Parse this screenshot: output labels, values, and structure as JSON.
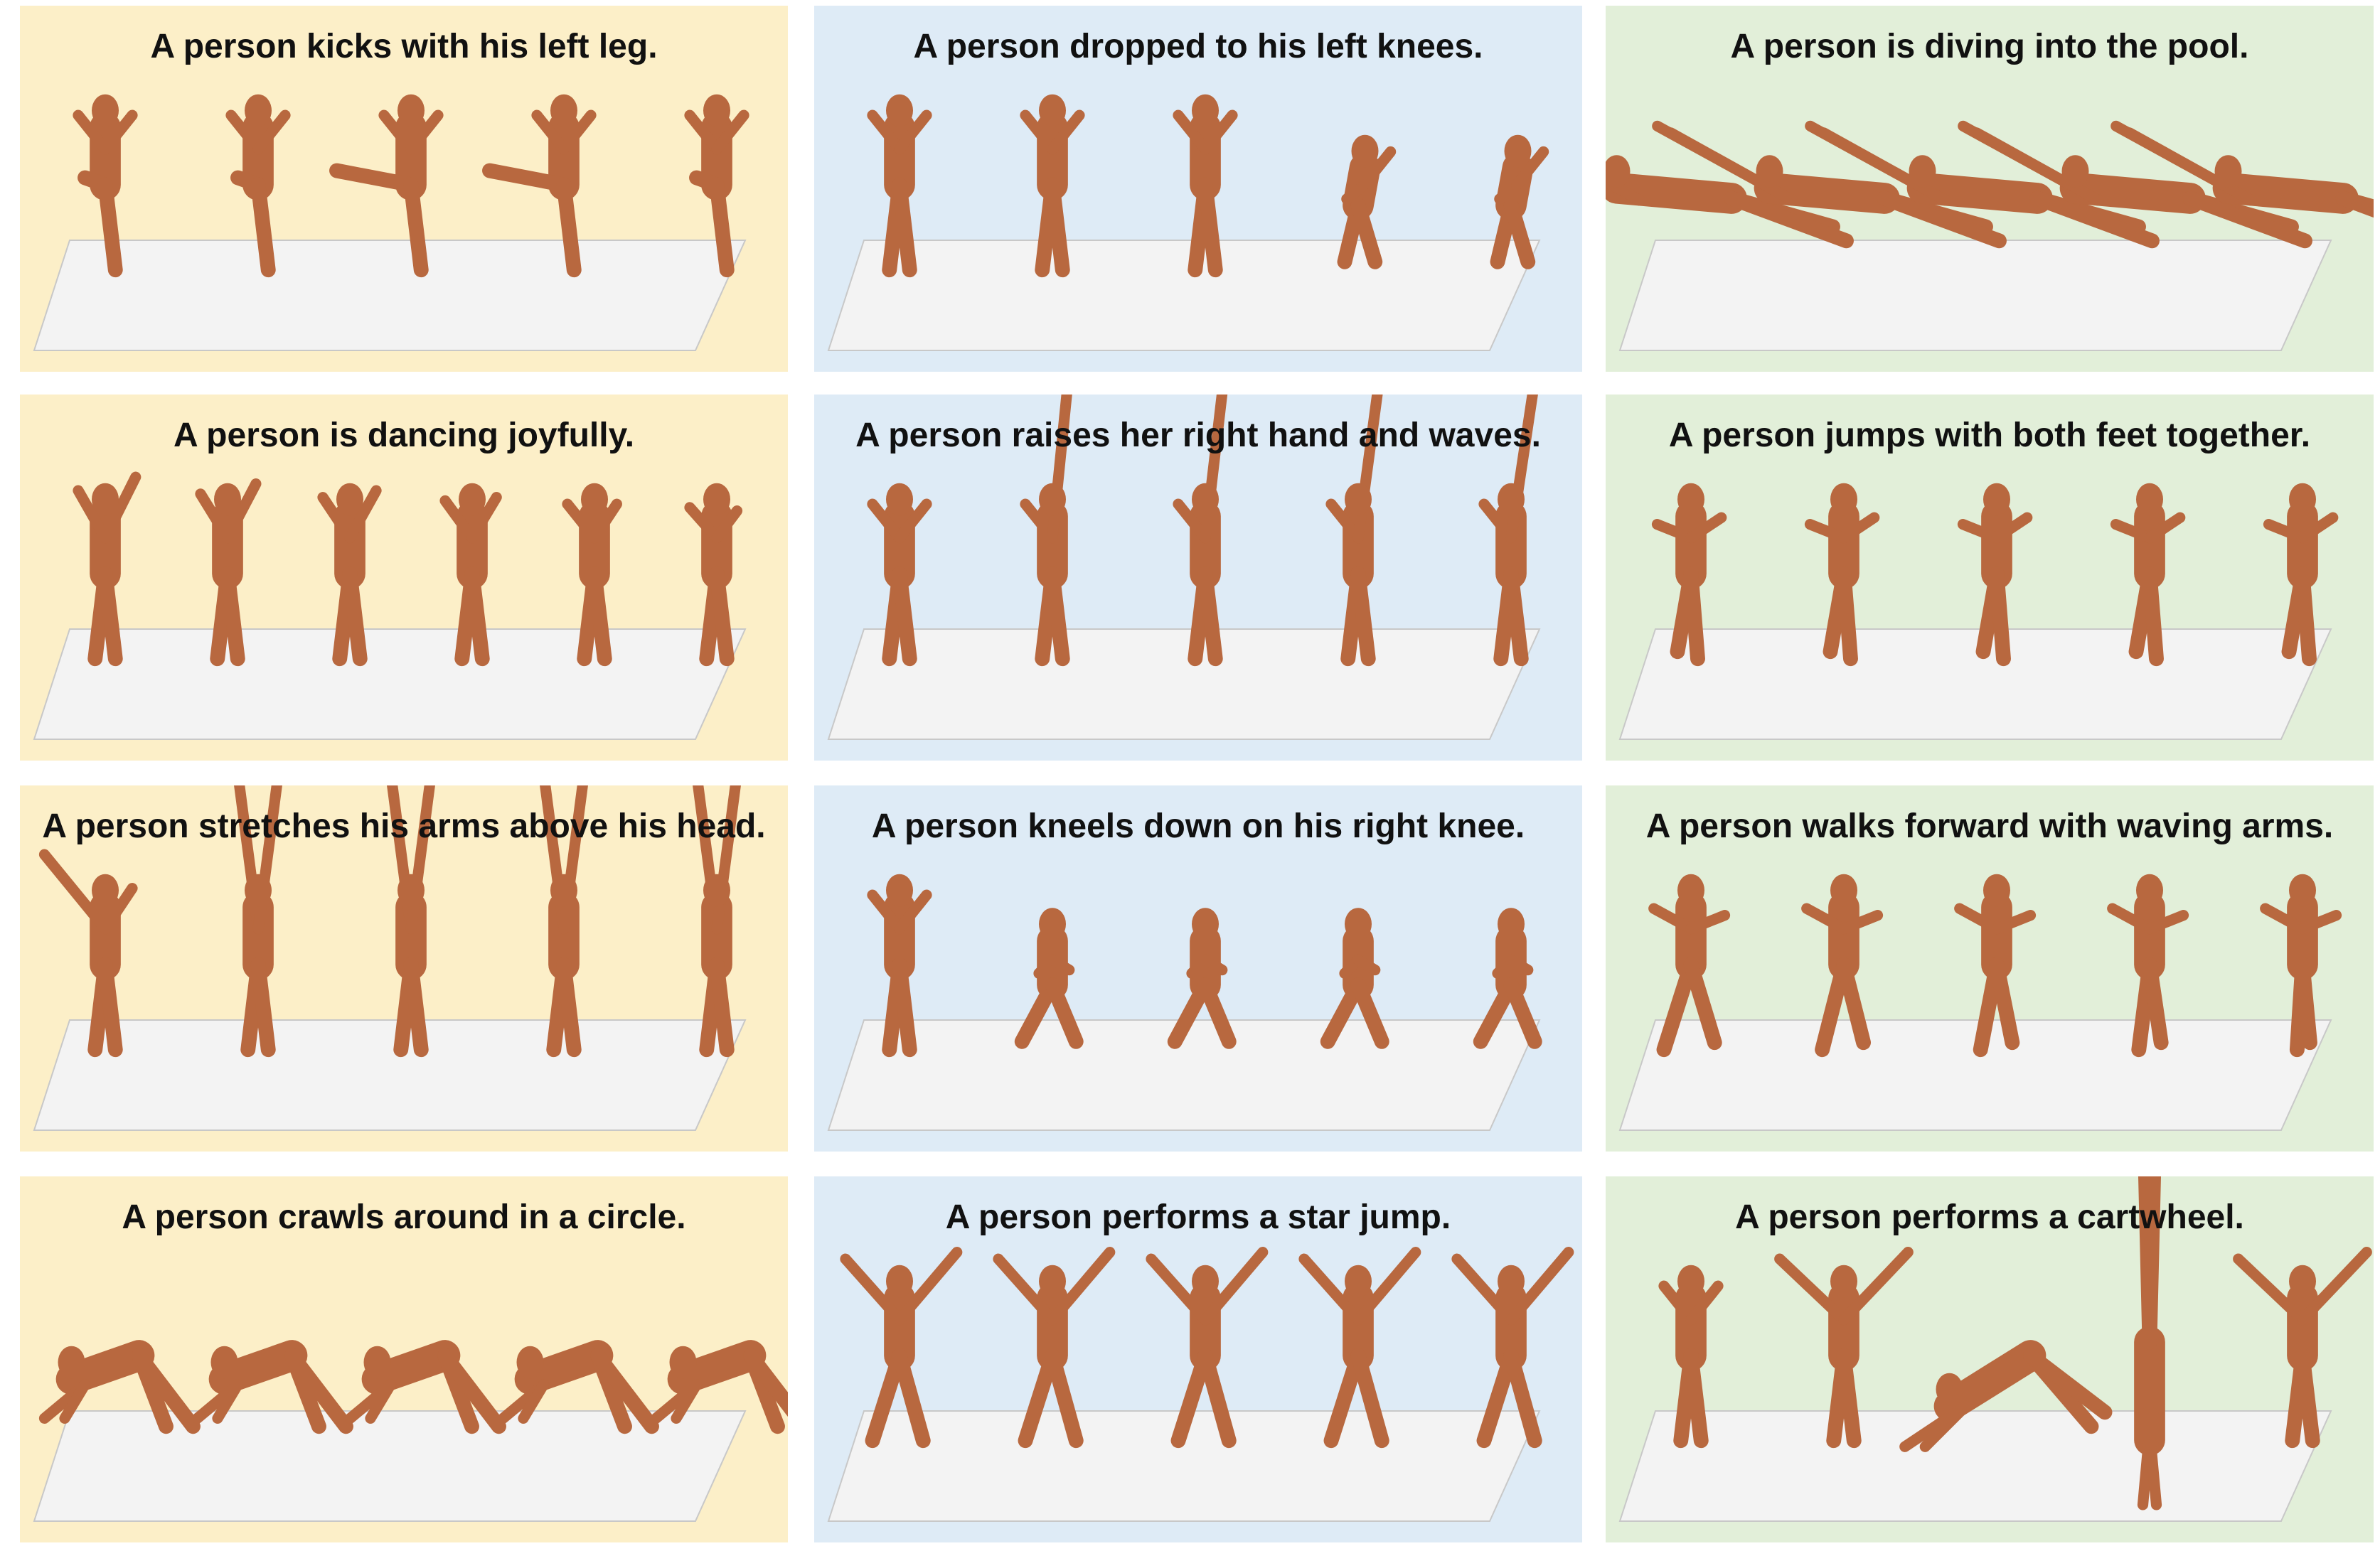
{
  "colors": {
    "col1_bg": "#fcefc8",
    "col2_bg": "#deebf6",
    "col3_bg": "#e2efd9",
    "floor": "#f3f3f3",
    "figure": "#b8683f"
  },
  "grid": [
    {
      "caption": "A person kicks with his left leg.",
      "figures": 5,
      "pose": "kick"
    },
    {
      "caption": "A person dropped to his left knees.",
      "figures": 5,
      "pose": "drop"
    },
    {
      "caption": "A person is diving into the pool.",
      "figures": 5,
      "pose": "dive"
    },
    {
      "caption": "A person is dancing joyfully.",
      "figures": 6,
      "pose": "dance"
    },
    {
      "caption": "A person raises her right hand and waves.",
      "figures": 5,
      "pose": "wave"
    },
    {
      "caption": "A person jumps with both feet together.",
      "figures": 5,
      "pose": "jump"
    },
    {
      "caption": "A person stretches his arms above his head.",
      "figures": 5,
      "pose": "stretch"
    },
    {
      "caption": "A person kneels down on his right knee.",
      "figures": 5,
      "pose": "kneel"
    },
    {
      "caption": "A person walks forward with waving arms.",
      "figures": 5,
      "pose": "walk"
    },
    {
      "caption": "A person crawls around in a circle.",
      "figures": 5,
      "pose": "crawl"
    },
    {
      "caption": "A person performs a star jump.",
      "figures": 5,
      "pose": "star"
    },
    {
      "caption": "A person performs a cartwheel.",
      "figures": 5,
      "pose": "cartwheel"
    }
  ]
}
